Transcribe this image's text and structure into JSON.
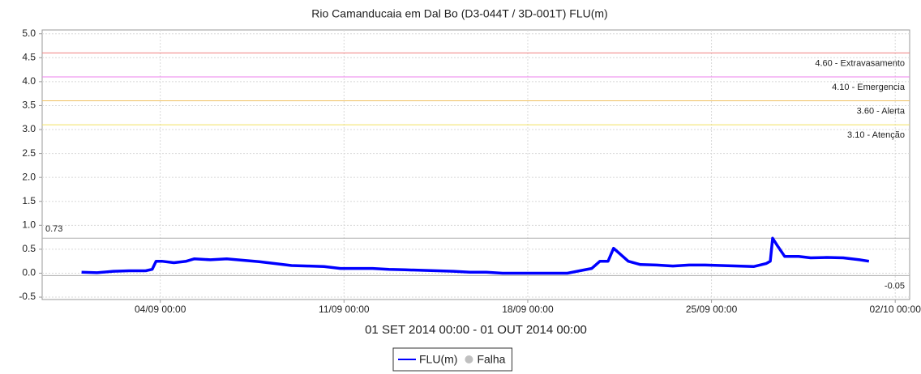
{
  "chart_data": {
    "type": "line",
    "title": "Rio Camanducaia em Dal Bo (D3-044T / 3D-001T) FLU(m)",
    "x_label": "01 SET 2014 00:00 - 01 OUT 2014 00:00",
    "x": [
      0,
      0.59,
      1.21,
      1.82,
      2.44,
      2.69,
      2.84,
      3.06,
      3.52,
      3.99,
      4.3,
      4.91,
      5.53,
      6.15,
      6.77,
      7.39,
      8.0,
      8.62,
      9.24,
      9.86,
      10.48,
      11.09,
      11.71,
      12.33,
      12.95,
      13.57,
      14.18,
      14.8,
      15.42,
      16.04,
      16.66,
      17.27,
      17.89,
      18.51,
      18.98,
      19.44,
      19.75,
      20.06,
      20.27,
      20.52,
      20.83,
      21.29,
      21.91,
      22.53,
      23.15,
      23.76,
      24.38,
      25.0,
      25.62,
      26.08,
      26.24,
      26.33,
      26.54,
      26.79,
      27.32,
      27.78,
      28.4,
      29.02,
      29.64,
      30.0
    ],
    "series": [
      {
        "name": "FLU(m)",
        "color": "#0000ff",
        "values": [
          0.02,
          0.01,
          0.04,
          0.05,
          0.05,
          0.08,
          0.25,
          0.25,
          0.22,
          0.25,
          0.3,
          0.28,
          0.3,
          0.27,
          0.24,
          0.2,
          0.16,
          0.15,
          0.14,
          0.1,
          0.1,
          0.1,
          0.08,
          0.07,
          0.06,
          0.05,
          0.04,
          0.02,
          0.02,
          0.0,
          0.0,
          0.0,
          0.0,
          0.0,
          0.05,
          0.1,
          0.25,
          0.25,
          0.52,
          0.4,
          0.25,
          0.18,
          0.17,
          0.15,
          0.17,
          0.17,
          0.16,
          0.15,
          0.14,
          0.2,
          0.25,
          0.73,
          0.55,
          0.35,
          0.35,
          0.32,
          0.33,
          0.32,
          0.28,
          0.25
        ]
      },
      {
        "name": "Falha",
        "color": "#c0c0c0"
      }
    ],
    "xlim": [
      -1.5,
      31.55
    ],
    "xticks": [
      {
        "value": 3,
        "label": "04/09 00:00"
      },
      {
        "value": 10,
        "label": "11/09 00:00"
      },
      {
        "value": 17,
        "label": "18/09 00:00"
      },
      {
        "value": 24,
        "label": "25/09 00:00"
      },
      {
        "value": 31,
        "label": "02/10 00:00"
      }
    ],
    "ylim": [
      -0.55,
      5.08
    ],
    "yticks": [
      {
        "value": 5,
        "label": "5.0"
      },
      4.5,
      {
        "value": 4,
        "label": "4.0"
      },
      3.5,
      {
        "value": 3,
        "label": "3.0"
      },
      2.5,
      {
        "value": 2,
        "label": "2.0"
      },
      1.5,
      {
        "value": 1,
        "label": "1.0"
      },
      0.5,
      {
        "value": 0,
        "label": "0.0"
      },
      -0.5
    ],
    "grid": true,
    "reference_lines": [
      {
        "value": 4.6,
        "label": "4.60 - Extravasamento",
        "color": "#f08080"
      },
      {
        "value": 4.1,
        "label": "4.10 - Emergencia",
        "color": "#ee82ee"
      },
      {
        "value": 3.6,
        "label": "3.60 - Alerta",
        "color": "#f0c060"
      },
      {
        "value": 3.1,
        "label": "3.10 - Atenção",
        "color": "#f0e060"
      }
    ],
    "max_line": {
      "value": 0.73,
      "label": "0.73",
      "color": "#b0b0b0"
    },
    "min_line": {
      "value": -0.05,
      "label": "-0.05",
      "color": "#b0b0b0"
    }
  }
}
